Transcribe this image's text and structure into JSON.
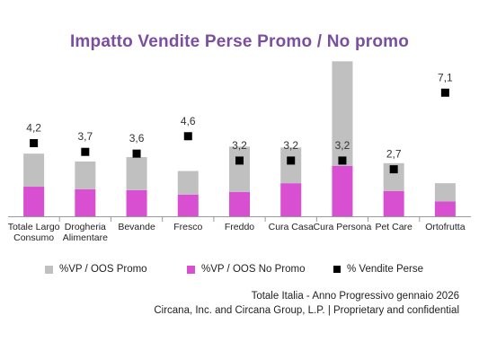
{
  "chart_data": {
    "type": "bar",
    "title": "Impatto Vendite Perse Promo / No promo",
    "categories": [
      [
        "Totale Largo",
        "Consumo"
      ],
      [
        "Drogheria",
        "Alimentare"
      ],
      [
        "Bevande"
      ],
      [
        "Fresco"
      ],
      [
        "Freddo"
      ],
      [
        "Cura Casa"
      ],
      [
        "Cura Persona"
      ],
      [
        "Pet Care"
      ],
      [
        "Ortofrutta"
      ]
    ],
    "series": [
      {
        "name": "%VP / OOS No Promo",
        "kind": "stacked-bar",
        "color": "#d94fd2",
        "values": [
          1.7,
          1.55,
          1.5,
          1.25,
          1.4,
          1.9,
          2.9,
          1.45,
          0.85
        ]
      },
      {
        "name": "%VP / OOS Promo",
        "kind": "stacked-bar",
        "color": "#c0c0c0",
        "values": [
          1.9,
          1.6,
          1.9,
          1.35,
          2.6,
          2.05,
          6.0,
          1.6,
          1.05
        ]
      },
      {
        "name": "% Vendite Perse",
        "kind": "marker",
        "color": "#000000",
        "values": [
          4.2,
          3.7,
          3.6,
          4.6,
          3.2,
          3.2,
          3.2,
          2.7,
          7.1
        ],
        "labels": [
          "4,2",
          "3,7",
          "3,6",
          "4,6",
          "3,2",
          "3,2",
          "3,2",
          "2,7",
          "7,1"
        ]
      }
    ],
    "ylim": [
      0,
      8.0
    ],
    "grid": false,
    "legend_position": "bottom"
  },
  "legend": {
    "promo": "%VP / OOS Promo",
    "no_promo": "%VP / OOS No Promo",
    "vendite_perse": "% Vendite Perse"
  },
  "footer": {
    "line1": "Totale Italia - Anno Progressivo gennaio 2026",
    "line2": "Circana, Inc. and Circana Group, L.P. |  Proprietary and confidential"
  }
}
